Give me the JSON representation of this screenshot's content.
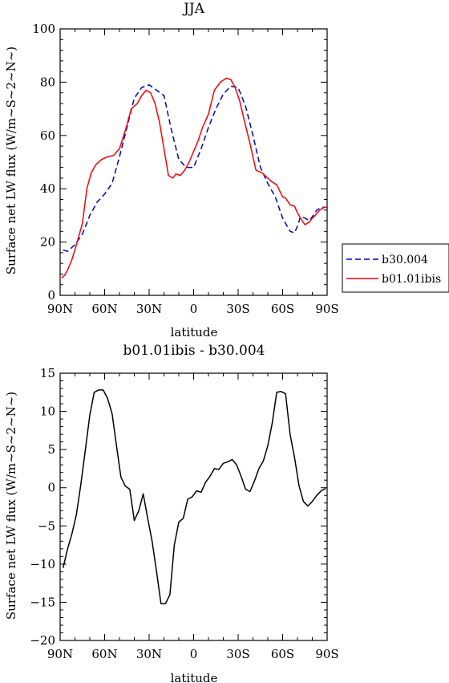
{
  "chart_data": [
    {
      "type": "line",
      "title": "JJA",
      "xlabel": "latitude",
      "ylabel": "Surface net LW flux (W/m~S~2~N~)",
      "ylim": [
        0,
        100
      ],
      "yticks": [
        0,
        20,
        40,
        60,
        80,
        100
      ],
      "xlim": [
        -90,
        90
      ],
      "x_ticks": [
        "90N",
        "60N",
        "30N",
        "0",
        "30S",
        "60S",
        "90S"
      ],
      "legend": {
        "placement": "right"
      },
      "series": [
        {
          "name": "b30.004",
          "color": "#0000cc",
          "dash": "dashed",
          "x": [
            -88,
            -85,
            -80,
            -75,
            -70,
            -65,
            -60,
            -55,
            -50,
            -45,
            -40,
            -35,
            -30,
            -25,
            -20,
            -15,
            -10,
            -5,
            0,
            5,
            10,
            15,
            20,
            25,
            30,
            35,
            40,
            45,
            50,
            55,
            60,
            65,
            68,
            70,
            72,
            75,
            78,
            80,
            83,
            86,
            89
          ],
          "y": [
            17,
            16.5,
            19,
            23,
            30,
            35,
            38,
            42,
            52,
            63,
            74,
            78,
            79,
            77,
            75,
            62,
            51,
            48,
            48,
            55,
            63,
            70,
            75.5,
            78.5,
            78,
            71,
            60,
            48,
            42,
            37,
            29,
            24,
            23.5,
            26,
            29.5,
            29,
            28,
            29.5,
            32,
            33,
            33
          ]
        },
        {
          "name": "b01.01ibis",
          "color": "#ff0000",
          "dash": "solid",
          "x": [
            -89,
            -87,
            -85,
            -82,
            -79,
            -75,
            -72,
            -69,
            -66,
            -62,
            -58,
            -54,
            -50,
            -46,
            -42,
            -38,
            -35,
            -32,
            -29,
            -26,
            -23,
            -20,
            -17,
            -14,
            -12,
            -9,
            -6,
            -3,
            0,
            3,
            6,
            10,
            14,
            18,
            22,
            25,
            28,
            31,
            34,
            38,
            42,
            46,
            50,
            53,
            56,
            60,
            62,
            65,
            68,
            70,
            72,
            75,
            78,
            80,
            82,
            85,
            88,
            90
          ],
          "y": [
            6.5,
            7.5,
            9.5,
            13.5,
            19,
            27,
            40,
            46,
            49,
            51,
            52,
            52.5,
            55,
            62,
            70,
            72,
            75,
            77,
            76,
            72,
            65,
            55,
            45,
            44,
            45.5,
            45,
            47,
            50,
            54,
            58,
            63,
            68,
            77,
            80,
            81.5,
            81,
            78,
            73,
            66,
            57,
            47,
            46,
            44,
            42.5,
            41.5,
            37,
            36.5,
            34,
            33.5,
            31,
            29,
            26.5,
            27.5,
            29,
            30,
            32,
            33,
            33
          ]
        }
      ]
    },
    {
      "type": "line",
      "title": "b01.01ibis - b30.004",
      "xlabel": "latitude",
      "ylabel": "Surface net LW flux (W/m~S~2~N~)",
      "ylim": [
        -20,
        15
      ],
      "yticks": [
        -20,
        -15,
        -10,
        -5,
        0,
        5,
        10,
        15
      ],
      "xlim": [
        -90,
        90
      ],
      "x_ticks": [
        "90N",
        "60N",
        "30N",
        "0",
        "30S",
        "60S",
        "90S"
      ],
      "series": [
        {
          "color": "#000000",
          "dash": "solid",
          "x": [
            -88,
            -85,
            -82,
            -79,
            -76,
            -73,
            -70,
            -67,
            -64,
            -61,
            -58,
            -55,
            -52,
            -49,
            -46,
            -43,
            -40,
            -37,
            -34,
            -31,
            -28,
            -25,
            -22,
            -19,
            -16,
            -13,
            -10,
            -7,
            -4,
            -1,
            2,
            5,
            8,
            11,
            14,
            17,
            20,
            23,
            26,
            29,
            32,
            35,
            38,
            41,
            44,
            47,
            50,
            53,
            56,
            59,
            62,
            65,
            68,
            71,
            74,
            77,
            80,
            83,
            86,
            89
          ],
          "y": [
            -10.5,
            -8,
            -6,
            -3.5,
            0.5,
            5,
            9.5,
            12.5,
            12.8,
            12.8,
            11.7,
            9.7,
            5.5,
            1.4,
            0.2,
            -0.2,
            -4.3,
            -3,
            -0.8,
            -4,
            -7,
            -11,
            -15.2,
            -15.2,
            -14,
            -7.5,
            -4.5,
            -4,
            -1.5,
            -1.2,
            -0.4,
            -0.6,
            0.7,
            1.5,
            2.5,
            2.4,
            3.2,
            3.4,
            3.7,
            3,
            1.5,
            -0.2,
            -0.5,
            0.9,
            2.5,
            3.5,
            5.5,
            8.5,
            12.5,
            12.6,
            12.3,
            7,
            4,
            0.3,
            -1.8,
            -2.4,
            -1.8,
            -1,
            -0.4,
            -0.1
          ]
        }
      ]
    }
  ]
}
